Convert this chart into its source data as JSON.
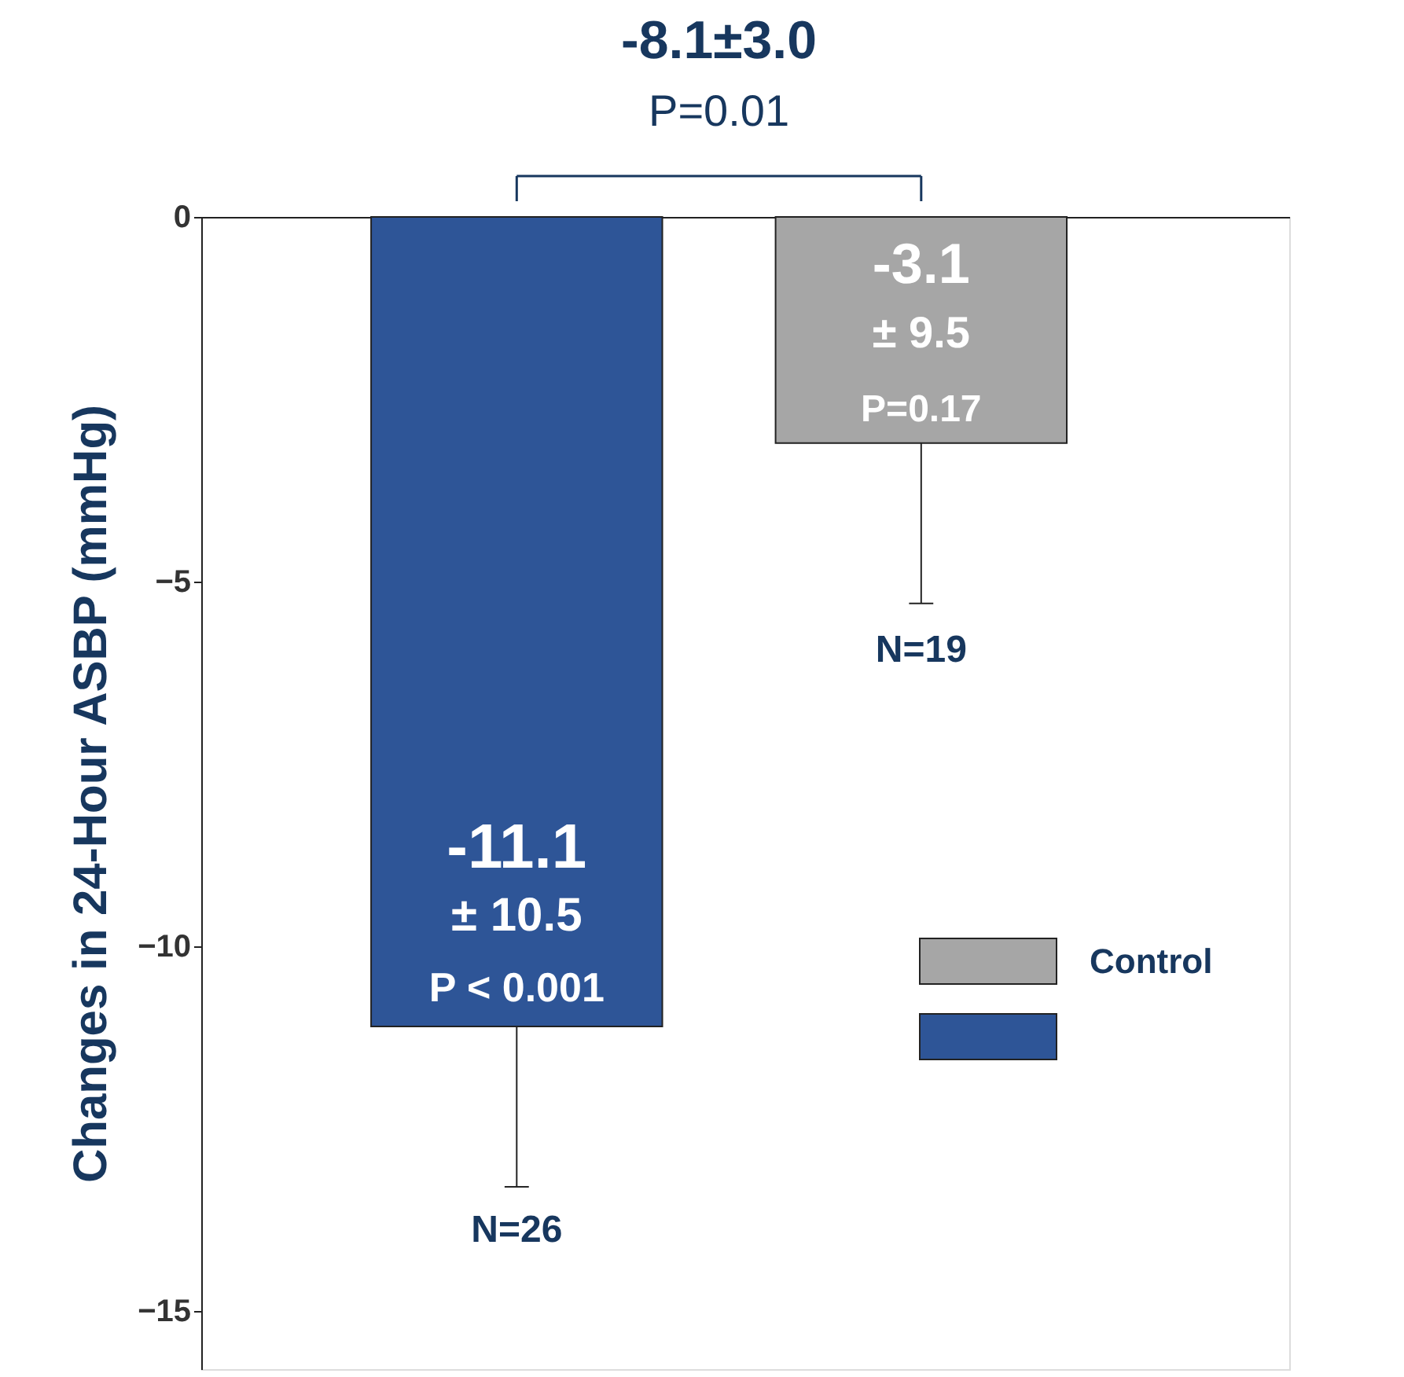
{
  "chart_data": {
    "type": "bar",
    "ylabel": "Changes in 24-Hour ASBP (mmHg)",
    "categories": [
      null,
      null
    ],
    "series": [
      {
        "color": "#2e5597",
        "values": [
          -11.1,
          null
        ],
        "errors": [
          [
            -13.3,
            -11.1
          ],
          null
        ],
        "value_labels": [
          "-11.1",
          null
        ]
      },
      {
        "name": "Control",
        "color": "#a6a6a6",
        "values": [
          null,
          -3.1
        ],
        "errors": [
          null,
          [
            -5.3,
            -3.1
          ]
        ],
        "value_labels": [
          null,
          "-3.1"
        ]
      }
    ],
    "ylim": [
      -15.8,
      0
    ],
    "yticks": [
      0,
      -5,
      -10,
      -15
    ],
    "grid": false,
    "legend": "bottom right",
    "annotations": [
      "-8.1±3.0",
      "P=0.01",
      "± 10.5",
      "P < 0.001",
      "± 9.5",
      "P=0.17",
      "N=26",
      "N=19"
    ]
  }
}
